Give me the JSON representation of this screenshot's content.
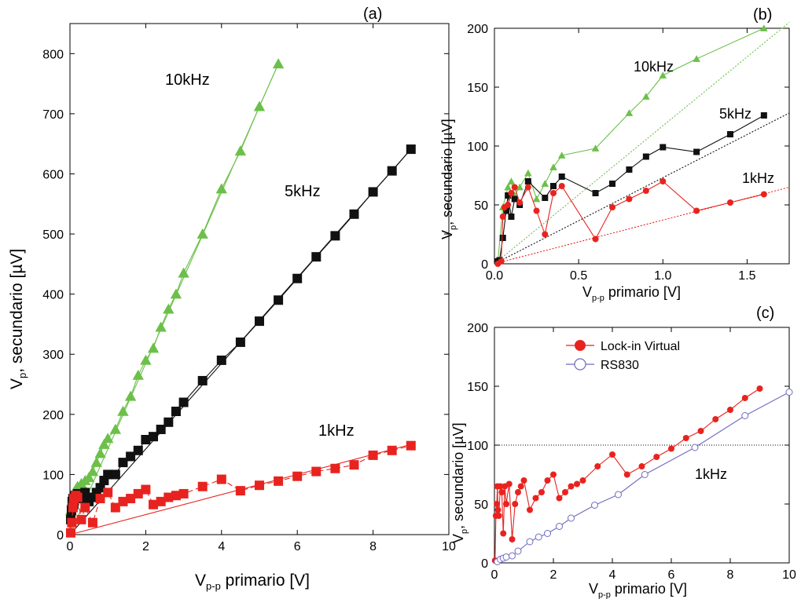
{
  "colors": {
    "red": "#e8231f",
    "black": "#111111",
    "green": "#6cc04a",
    "blue": "#6f6bc0"
  },
  "chart_data": [
    {
      "panel": "(a)",
      "type": "line",
      "xlabel": "V",
      "xlabel_sub": "p-p",
      "xlabel_rest": " primario [V]",
      "ylabel": "V",
      "ylabel_sub": "p",
      "ylabel_rest": ", secundario [µV]",
      "xlim": [
        0,
        10
      ],
      "ylim": [
        0,
        850
      ],
      "xticks": [
        0,
        2,
        4,
        6,
        8,
        10
      ],
      "yticks": [
        0,
        100,
        200,
        300,
        400,
        500,
        600,
        700,
        800
      ],
      "annotations": [
        "10kHz",
        "5kHz",
        "1kHz"
      ],
      "fits": [
        {
          "color": "green",
          "from": [
            0,
            0
          ],
          "to": [
            5.5,
            783
          ]
        },
        {
          "color": "black",
          "from": [
            0,
            0
          ],
          "to": [
            9,
            641
          ]
        },
        {
          "color": "red",
          "from": [
            0,
            0
          ],
          "to": [
            9,
            150
          ]
        }
      ],
      "series": [
        {
          "marker": "triangle",
          "color": "green",
          "dash": false,
          "x": [
            0.02,
            0.05,
            0.08,
            0.1,
            0.15,
            0.2,
            0.25,
            0.3,
            0.4,
            0.5,
            0.6,
            0.7,
            0.8,
            0.9,
            1.0,
            1.2,
            1.4,
            1.6,
            1.8,
            2.0,
            2.2,
            2.4,
            2.6,
            2.8,
            3.0,
            3.5,
            4.0,
            4.5,
            5.0,
            5.5
          ],
          "y": [
            40,
            55,
            65,
            70,
            75,
            80,
            78,
            85,
            90,
            95,
            105,
            120,
            135,
            150,
            160,
            175,
            205,
            230,
            265,
            290,
            310,
            345,
            375,
            400,
            435,
            500,
            575,
            638,
            712,
            783
          ]
        },
        {
          "marker": "square",
          "color": "black",
          "dash": false,
          "x": [
            0.02,
            0.04,
            0.06,
            0.08,
            0.1,
            0.12,
            0.15,
            0.2,
            0.3,
            0.4,
            0.5,
            0.6,
            0.7,
            0.8,
            0.9,
            1.0,
            1.2,
            1.4,
            1.6,
            1.8,
            2.0,
            2.2,
            2.4,
            2.6,
            2.8,
            3.0,
            3.5,
            4.0,
            4.5,
            5.0,
            5.5,
            6.0,
            6.5,
            7.0,
            7.5,
            8.0,
            8.5,
            9.0
          ],
          "y": [
            25,
            40,
            55,
            60,
            50,
            65,
            62,
            68,
            60,
            70,
            55,
            62,
            70,
            78,
            90,
            100,
            100,
            120,
            130,
            140,
            158,
            163,
            175,
            187,
            205,
            220,
            256,
            290,
            320,
            355,
            390,
            426,
            462,
            497,
            533,
            570,
            605,
            641
          ]
        },
        {
          "marker": "square",
          "color": "red",
          "dash": true,
          "x": [
            0.02,
            0.05,
            0.08,
            0.1,
            0.15,
            0.2,
            0.3,
            0.4,
            0.6,
            0.8,
            1.0,
            1.2,
            1.4,
            1.6,
            1.8,
            2.0,
            2.2,
            2.4,
            2.6,
            2.8,
            3.0,
            3.5,
            4.0,
            4.5,
            5.0,
            5.5,
            6.0,
            6.5,
            7.0,
            7.5,
            8.0,
            8.5,
            9.0
          ],
          "y": [
            3,
            20,
            45,
            60,
            65,
            62,
            25,
            45,
            20,
            60,
            70,
            45,
            55,
            60,
            68,
            75,
            50,
            55,
            62,
            65,
            68,
            80,
            92,
            73,
            82,
            89,
            97,
            105,
            110,
            116,
            132,
            140,
            148
          ]
        }
      ]
    },
    {
      "panel": "(b)",
      "type": "line",
      "xlabel": "V",
      "xlabel_sub": "p-p",
      "xlabel_rest": " primario [V]",
      "ylabel": "V",
      "ylabel_sub": "p",
      "ylabel_rest": ", secundario [µV]",
      "xlim": [
        0,
        1.75
      ],
      "ylim": [
        0,
        200
      ],
      "xticks": [
        0.0,
        0.5,
        1.0,
        1.5
      ],
      "xtick_labels": [
        "0.0",
        "0.5",
        "1.0",
        "1.5"
      ],
      "yticks": [
        0,
        50,
        100,
        150,
        200
      ],
      "annotations": [
        "10kHz",
        "5kHz",
        "1kHz"
      ],
      "fits": [
        {
          "color": "green",
          "from": [
            0,
            0
          ],
          "to": [
            1.75,
            205
          ]
        },
        {
          "color": "black",
          "from": [
            0,
            0
          ],
          "to": [
            1.75,
            128
          ]
        },
        {
          "color": "red",
          "from": [
            0,
            0
          ],
          "to": [
            1.75,
            65
          ]
        }
      ],
      "series": [
        {
          "marker": "triangle",
          "color": "green",
          "x": [
            0.02,
            0.05,
            0.08,
            0.1,
            0.12,
            0.15,
            0.2,
            0.25,
            0.3,
            0.35,
            0.4,
            0.6,
            0.8,
            0.9,
            1.0,
            1.2,
            1.6
          ],
          "y": [
            2,
            48,
            65,
            70,
            58,
            65,
            77,
            55,
            68,
            82,
            92,
            98,
            128,
            142,
            160,
            174,
            200
          ]
        },
        {
          "marker": "square",
          "color": "black",
          "x": [
            0.02,
            0.03,
            0.05,
            0.07,
            0.08,
            0.1,
            0.12,
            0.15,
            0.2,
            0.3,
            0.35,
            0.4,
            0.6,
            0.7,
            0.8,
            0.9,
            1.0,
            1.2,
            1.4,
            1.6
          ],
          "y": [
            2,
            3,
            22,
            45,
            58,
            40,
            55,
            50,
            70,
            56,
            66,
            74,
            60,
            68,
            80,
            91,
            99,
            95,
            110,
            126
          ]
        },
        {
          "marker": "circle",
          "color": "red",
          "x": [
            0.02,
            0.04,
            0.05,
            0.06,
            0.08,
            0.1,
            0.12,
            0.15,
            0.2,
            0.25,
            0.3,
            0.35,
            0.4,
            0.6,
            0.7,
            0.8,
            0.9,
            1.0,
            1.2,
            1.4,
            1.6
          ],
          "y": [
            0,
            2,
            40,
            48,
            50,
            60,
            65,
            52,
            65,
            45,
            25,
            60,
            66,
            21,
            48,
            55,
            62,
            70,
            45,
            52,
            59
          ]
        }
      ]
    },
    {
      "panel": "(c)",
      "type": "line",
      "xlabel": "V",
      "xlabel_sub": "p-p",
      "xlabel_rest": " primario [V]",
      "ylabel": "V",
      "ylabel_sub": "p",
      "ylabel_rest": ", secundario [µV]",
      "xlim": [
        0,
        10
      ],
      "ylim": [
        0,
        200
      ],
      "xticks": [
        0,
        2,
        4,
        6,
        8,
        10
      ],
      "yticks": [
        0,
        50,
        100,
        150,
        200
      ],
      "annotations": [
        "1kHz"
      ],
      "hline": 100,
      "legend": [
        "Lock-in Virtual",
        "RS830"
      ],
      "series": [
        {
          "name": "Lock-in Virtual",
          "marker": "filled-circle",
          "color": "red",
          "x": [
            0.02,
            0.05,
            0.08,
            0.1,
            0.12,
            0.15,
            0.2,
            0.25,
            0.3,
            0.35,
            0.4,
            0.5,
            0.6,
            0.7,
            0.8,
            0.9,
            1.0,
            1.2,
            1.4,
            1.6,
            1.8,
            2.0,
            2.2,
            2.4,
            2.6,
            2.8,
            3.0,
            3.5,
            4.0,
            4.5,
            5.0,
            5.5,
            6.0,
            6.5,
            7.0,
            7.5,
            8.0,
            8.5,
            9.0
          ],
          "y": [
            2,
            40,
            50,
            65,
            45,
            40,
            65,
            60,
            25,
            65,
            50,
            67,
            20,
            50,
            60,
            65,
            70,
            45,
            55,
            60,
            70,
            75,
            55,
            60,
            65,
            67,
            70,
            82,
            92,
            75,
            82,
            90,
            97,
            106,
            112,
            122,
            130,
            140,
            148
          ]
        },
        {
          "name": "RS830",
          "marker": "open-circle",
          "color": "blue",
          "x": [
            0.1,
            0.2,
            0.3,
            0.4,
            0.6,
            0.8,
            1.2,
            1.5,
            1.8,
            2.2,
            2.6,
            3.4,
            4.2,
            5.1,
            6.8,
            8.5,
            10.0
          ],
          "y": [
            1,
            3,
            4,
            5,
            6,
            10,
            18,
            22,
            25,
            31,
            38,
            49,
            58,
            75,
            98,
            125,
            145
          ]
        }
      ]
    }
  ]
}
